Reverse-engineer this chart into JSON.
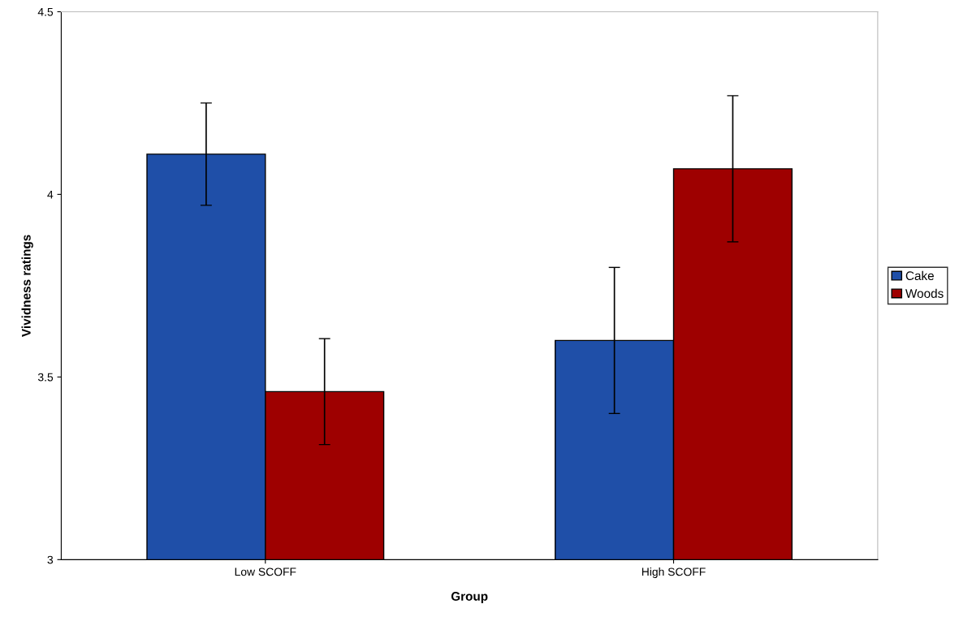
{
  "chart_data": {
    "type": "bar",
    "xlabel": "Group",
    "ylabel": "Vividness ratings",
    "categories": [
      "Low SCOFF",
      "High SCOFF"
    ],
    "series": [
      {
        "name": "Cake",
        "color": "#1f4fa8",
        "values": [
          4.11,
          3.6
        ],
        "errors": [
          0.14,
          0.2
        ]
      },
      {
        "name": "Woods",
        "color": "#9e0000",
        "values": [
          3.46,
          4.07
        ],
        "errors": [
          0.145,
          0.2
        ]
      }
    ],
    "ylim": [
      3,
      4.5
    ],
    "yticks": [
      3,
      3.5,
      4,
      4.5
    ],
    "grid": false,
    "legend": "right"
  }
}
